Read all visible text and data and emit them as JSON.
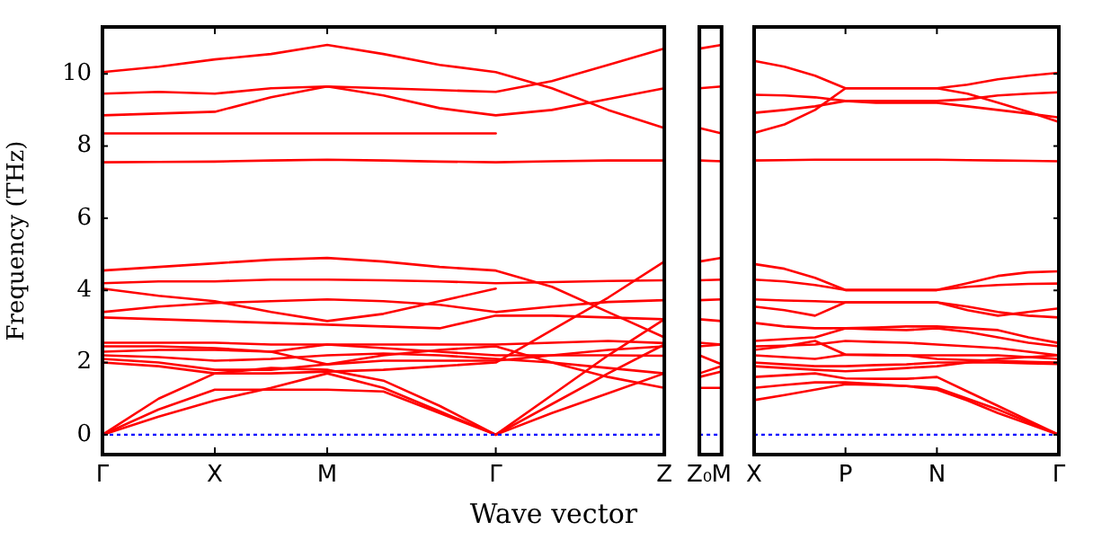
{
  "chart_data": [
    {
      "type": "line",
      "ylabel": "Frequency (THz)",
      "xlabel": "Wave vector",
      "marker": "none",
      "legend": false,
      "categories": [
        "Γ",
        null,
        "X",
        null,
        "M",
        null,
        null,
        "Γ",
        null,
        null,
        "Z"
      ],
      "ylim": [
        -0.55,
        11.3
      ],
      "yticks": [
        0,
        2,
        4,
        6,
        8,
        10
      ],
      "ref_lines": [
        {
          "axis": "y",
          "value": 0,
          "color": "#0000ff",
          "line_style": "dotted"
        }
      ],
      "series": [
        {
          "color": "#ff0000",
          "values": [
            10.05,
            10.2,
            10.4,
            10.55,
            10.8,
            10.55,
            10.25,
            10.05,
            9.6,
            9.0,
            8.5
          ]
        },
        {
          "color": "#ff0000",
          "values": [
            9.45,
            9.5,
            9.45,
            9.6,
            9.65,
            9.6,
            9.55,
            9.5,
            9.8,
            10.25,
            10.7
          ]
        },
        {
          "color": "#ff0000",
          "values": [
            8.85,
            8.9,
            8.95,
            9.35,
            9.65,
            9.4,
            9.05,
            8.85,
            9.0,
            9.3,
            9.6
          ]
        },
        {
          "color": "#ff0000",
          "values": [
            8.35,
            8.35,
            8.35,
            8.35,
            8.35,
            8.35,
            8.35,
            8.35,
            null,
            null,
            null
          ]
        },
        {
          "color": "#ff0000",
          "values": [
            7.55,
            7.56,
            7.57,
            7.6,
            7.62,
            7.6,
            7.57,
            7.55,
            7.58,
            7.6,
            7.6
          ]
        },
        {
          "color": "#ff0000",
          "values": [
            4.55,
            4.65,
            4.75,
            4.85,
            4.9,
            4.8,
            4.65,
            4.55,
            4.1,
            3.4,
            2.7
          ]
        },
        {
          "color": "#ff0000",
          "values": [
            4.2,
            4.25,
            4.25,
            4.3,
            4.3,
            4.28,
            4.25,
            4.2,
            4.23,
            4.26,
            4.28
          ]
        },
        {
          "color": "#ff0000",
          "values": [
            4.05,
            3.85,
            3.7,
            3.4,
            3.15,
            3.35,
            3.7,
            4.05,
            null,
            null,
            null
          ]
        },
        {
          "color": "#ff0000",
          "values": [
            3.4,
            3.55,
            3.65,
            3.7,
            3.75,
            3.7,
            3.6,
            3.4,
            3.55,
            3.68,
            3.73
          ]
        },
        {
          "color": "#ff0000",
          "values": [
            3.25,
            3.2,
            3.15,
            3.1,
            3.05,
            3.0,
            2.95,
            3.3,
            3.3,
            3.25,
            3.2
          ]
        },
        {
          "color": "#ff0000",
          "values": [
            2.55,
            2.55,
            2.55,
            2.5,
            2.5,
            2.5,
            2.5,
            2.5,
            2.55,
            2.6,
            2.54
          ]
        },
        {
          "color": "#ff0000",
          "values": [
            2.45,
            2.45,
            2.4,
            2.3,
            1.95,
            2.2,
            2.35,
            2.45,
            2.0,
            1.6,
            1.3
          ]
        },
        {
          "color": "#ff0000",
          "values": [
            2.3,
            2.35,
            2.35,
            2.3,
            2.5,
            2.4,
            2.3,
            2.2,
            2.2,
            2.2,
            2.19
          ]
        },
        {
          "color": "#ff0000",
          "values": [
            2.2,
            2.15,
            2.05,
            2.1,
            2.2,
            2.25,
            2.2,
            2.1,
            2.0,
            1.85,
            1.7
          ]
        },
        {
          "color": "#ff0000",
          "values": [
            2.1,
            2.0,
            1.8,
            1.8,
            1.95,
            2.05,
            2.05,
            2.05,
            2.2,
            2.35,
            2.45
          ]
        },
        {
          "color": "#ff0000",
          "values": [
            2.0,
            1.9,
            1.7,
            1.7,
            1.75,
            1.8,
            1.9,
            2.0,
            2.9,
            3.8,
            4.8
          ]
        },
        {
          "color": "#ff0000",
          "values": [
            0,
            0.5,
            0.95,
            1.3,
            1.7,
            1.3,
            0.65,
            0,
            0.6,
            1.15,
            1.7
          ]
        },
        {
          "color": "#ff0000",
          "values": [
            0,
            0.7,
            1.25,
            1.25,
            1.25,
            1.2,
            0.6,
            0,
            0.85,
            1.7,
            2.5
          ]
        },
        {
          "color": "#ff0000",
          "values": [
            0,
            1.0,
            1.7,
            1.85,
            1.8,
            1.5,
            0.8,
            0,
            1.1,
            2.2,
            3.2
          ]
        }
      ]
    },
    {
      "type": "line",
      "marker": "none",
      "legend": false,
      "tick_labels": "x",
      "categories": [
        "Z₀",
        "M"
      ],
      "ylim": [
        -0.55,
        11.3
      ],
      "ref_lines": [
        {
          "axis": "y",
          "value": 0,
          "color": "#0000ff",
          "line_style": "dotted"
        }
      ],
      "series": [
        {
          "color": "#ff0000",
          "values": [
            10.7,
            10.8
          ]
        },
        {
          "color": "#ff0000",
          "values": [
            9.6,
            9.65
          ]
        },
        {
          "color": "#ff0000",
          "values": [
            8.5,
            8.35
          ]
        },
        {
          "color": "#ff0000",
          "values": [
            7.6,
            7.58
          ]
        },
        {
          "color": "#ff0000",
          "values": [
            4.8,
            4.9
          ]
        },
        {
          "color": "#ff0000",
          "values": [
            4.28,
            4.3
          ]
        },
        {
          "color": "#ff0000",
          "values": [
            3.73,
            3.75
          ]
        },
        {
          "color": "#ff0000",
          "values": [
            3.2,
            3.15
          ]
        },
        {
          "color": "#ff0000",
          "values": [
            2.55,
            2.5
          ]
        },
        {
          "color": "#ff0000",
          "values": [
            2.45,
            2.5
          ]
        },
        {
          "color": "#ff0000",
          "values": [
            2.2,
            1.95
          ]
        },
        {
          "color": "#ff0000",
          "values": [
            1.7,
            1.9
          ]
        },
        {
          "color": "#ff0000",
          "values": [
            1.6,
            1.75
          ]
        },
        {
          "color": "#ff0000",
          "values": [
            1.3,
            1.3
          ]
        }
      ]
    },
    {
      "type": "line",
      "marker": "none",
      "legend": false,
      "tick_labels": "x",
      "categories": [
        "X",
        null,
        null,
        "P",
        null,
        null,
        "N",
        null,
        null,
        null,
        "Γ"
      ],
      "ylim": [
        -0.55,
        11.3
      ],
      "yticks": [
        {
          "value": 0,
          "label": null
        },
        {
          "value": 2,
          "label": null
        },
        {
          "value": 4,
          "label": null
        },
        {
          "value": 6,
          "label": null
        },
        {
          "value": 8,
          "label": null
        },
        {
          "value": 10,
          "label": null
        }
      ],
      "ref_lines": [
        {
          "axis": "y",
          "value": 0,
          "color": "#0000ff",
          "line_style": "dotted"
        }
      ],
      "series": [
        {
          "color": "#ff0000",
          "values": [
            10.36,
            10.2,
            9.95,
            9.6,
            9.6,
            9.6,
            9.6,
            9.7,
            9.85,
            9.95,
            10.03
          ]
        },
        {
          "color": "#ff0000",
          "values": [
            9.42,
            9.4,
            9.35,
            9.25,
            9.25,
            9.25,
            9.25,
            9.3,
            9.4,
            9.45,
            9.49
          ]
        },
        {
          "color": "#ff0000",
          "values": [
            8.92,
            9.0,
            9.1,
            9.25,
            9.2,
            9.2,
            9.2,
            9.1,
            9.0,
            8.9,
            8.79
          ]
        },
        {
          "color": "#ff0000",
          "values": [
            8.36,
            8.6,
            9.0,
            9.6,
            9.6,
            9.6,
            9.6,
            9.45,
            9.2,
            8.95,
            8.67
          ]
        },
        {
          "color": "#ff0000",
          "values": [
            7.6,
            7.61,
            7.62,
            7.62,
            7.62,
            7.62,
            7.62,
            7.61,
            7.6,
            7.59,
            7.58
          ]
        },
        {
          "color": "#ff0000",
          "values": [
            4.73,
            4.6,
            4.35,
            4.01,
            4.01,
            4.01,
            4.01,
            4.2,
            4.4,
            4.5,
            4.53
          ]
        },
        {
          "color": "#ff0000",
          "values": [
            4.3,
            4.25,
            4.15,
            4.01,
            4.01,
            4.01,
            4.01,
            4.1,
            4.15,
            4.18,
            4.19
          ]
        },
        {
          "color": "#ff0000",
          "values": [
            3.75,
            3.72,
            3.7,
            3.67,
            3.67,
            3.67,
            3.67,
            3.45,
            3.3,
            3.4,
            3.5
          ]
        },
        {
          "color": "#ff0000",
          "values": [
            3.55,
            3.45,
            3.3,
            3.67,
            3.67,
            3.67,
            3.67,
            3.55,
            3.4,
            3.3,
            3.25
          ]
        },
        {
          "color": "#ff0000",
          "values": [
            3.1,
            3.0,
            2.95,
            2.95,
            2.97,
            3.0,
            3.0,
            2.95,
            2.9,
            2.7,
            2.54
          ]
        },
        {
          "color": "#ff0000",
          "values": [
            2.6,
            2.65,
            2.7,
            2.95,
            2.92,
            2.9,
            2.95,
            2.85,
            2.7,
            2.55,
            2.45
          ]
        },
        {
          "color": "#ff0000",
          "values": [
            2.45,
            2.47,
            2.5,
            2.6,
            2.57,
            2.55,
            2.5,
            2.45,
            2.4,
            2.3,
            2.2
          ]
        },
        {
          "color": "#ff0000",
          "values": [
            2.35,
            2.45,
            2.6,
            2.22,
            2.21,
            2.2,
            2.2,
            2.2,
            2.2,
            2.15,
            2.1
          ]
        },
        {
          "color": "#ff0000",
          "values": [
            2.2,
            2.15,
            2.1,
            2.22,
            2.21,
            2.2,
            2.1,
            2.07,
            2.05,
            2.02,
            2.0
          ]
        },
        {
          "color": "#ff0000",
          "values": [
            2.0,
            1.95,
            1.9,
            1.9,
            1.93,
            1.95,
            2.0,
            2.0,
            2.0,
            1.98,
            1.96
          ]
        },
        {
          "color": "#ff0000",
          "values": [
            1.9,
            1.85,
            1.8,
            1.76,
            1.8,
            1.85,
            1.9,
            2.0,
            2.1,
            2.15,
            2.2
          ]
        },
        {
          "color": "#ff0000",
          "values": [
            1.6,
            1.65,
            1.7,
            1.56,
            1.55,
            1.55,
            1.6,
            1.2,
            0.8,
            0.4,
            0
          ]
        },
        {
          "color": "#ff0000",
          "values": [
            1.3,
            1.38,
            1.45,
            1.45,
            1.4,
            1.35,
            1.3,
            1.0,
            0.7,
            0.35,
            0
          ]
        },
        {
          "color": "#ff0000",
          "values": [
            0.96,
            1.1,
            1.25,
            1.4,
            1.38,
            1.35,
            1.25,
            0.95,
            0.6,
            0.3,
            0
          ]
        }
      ]
    }
  ]
}
